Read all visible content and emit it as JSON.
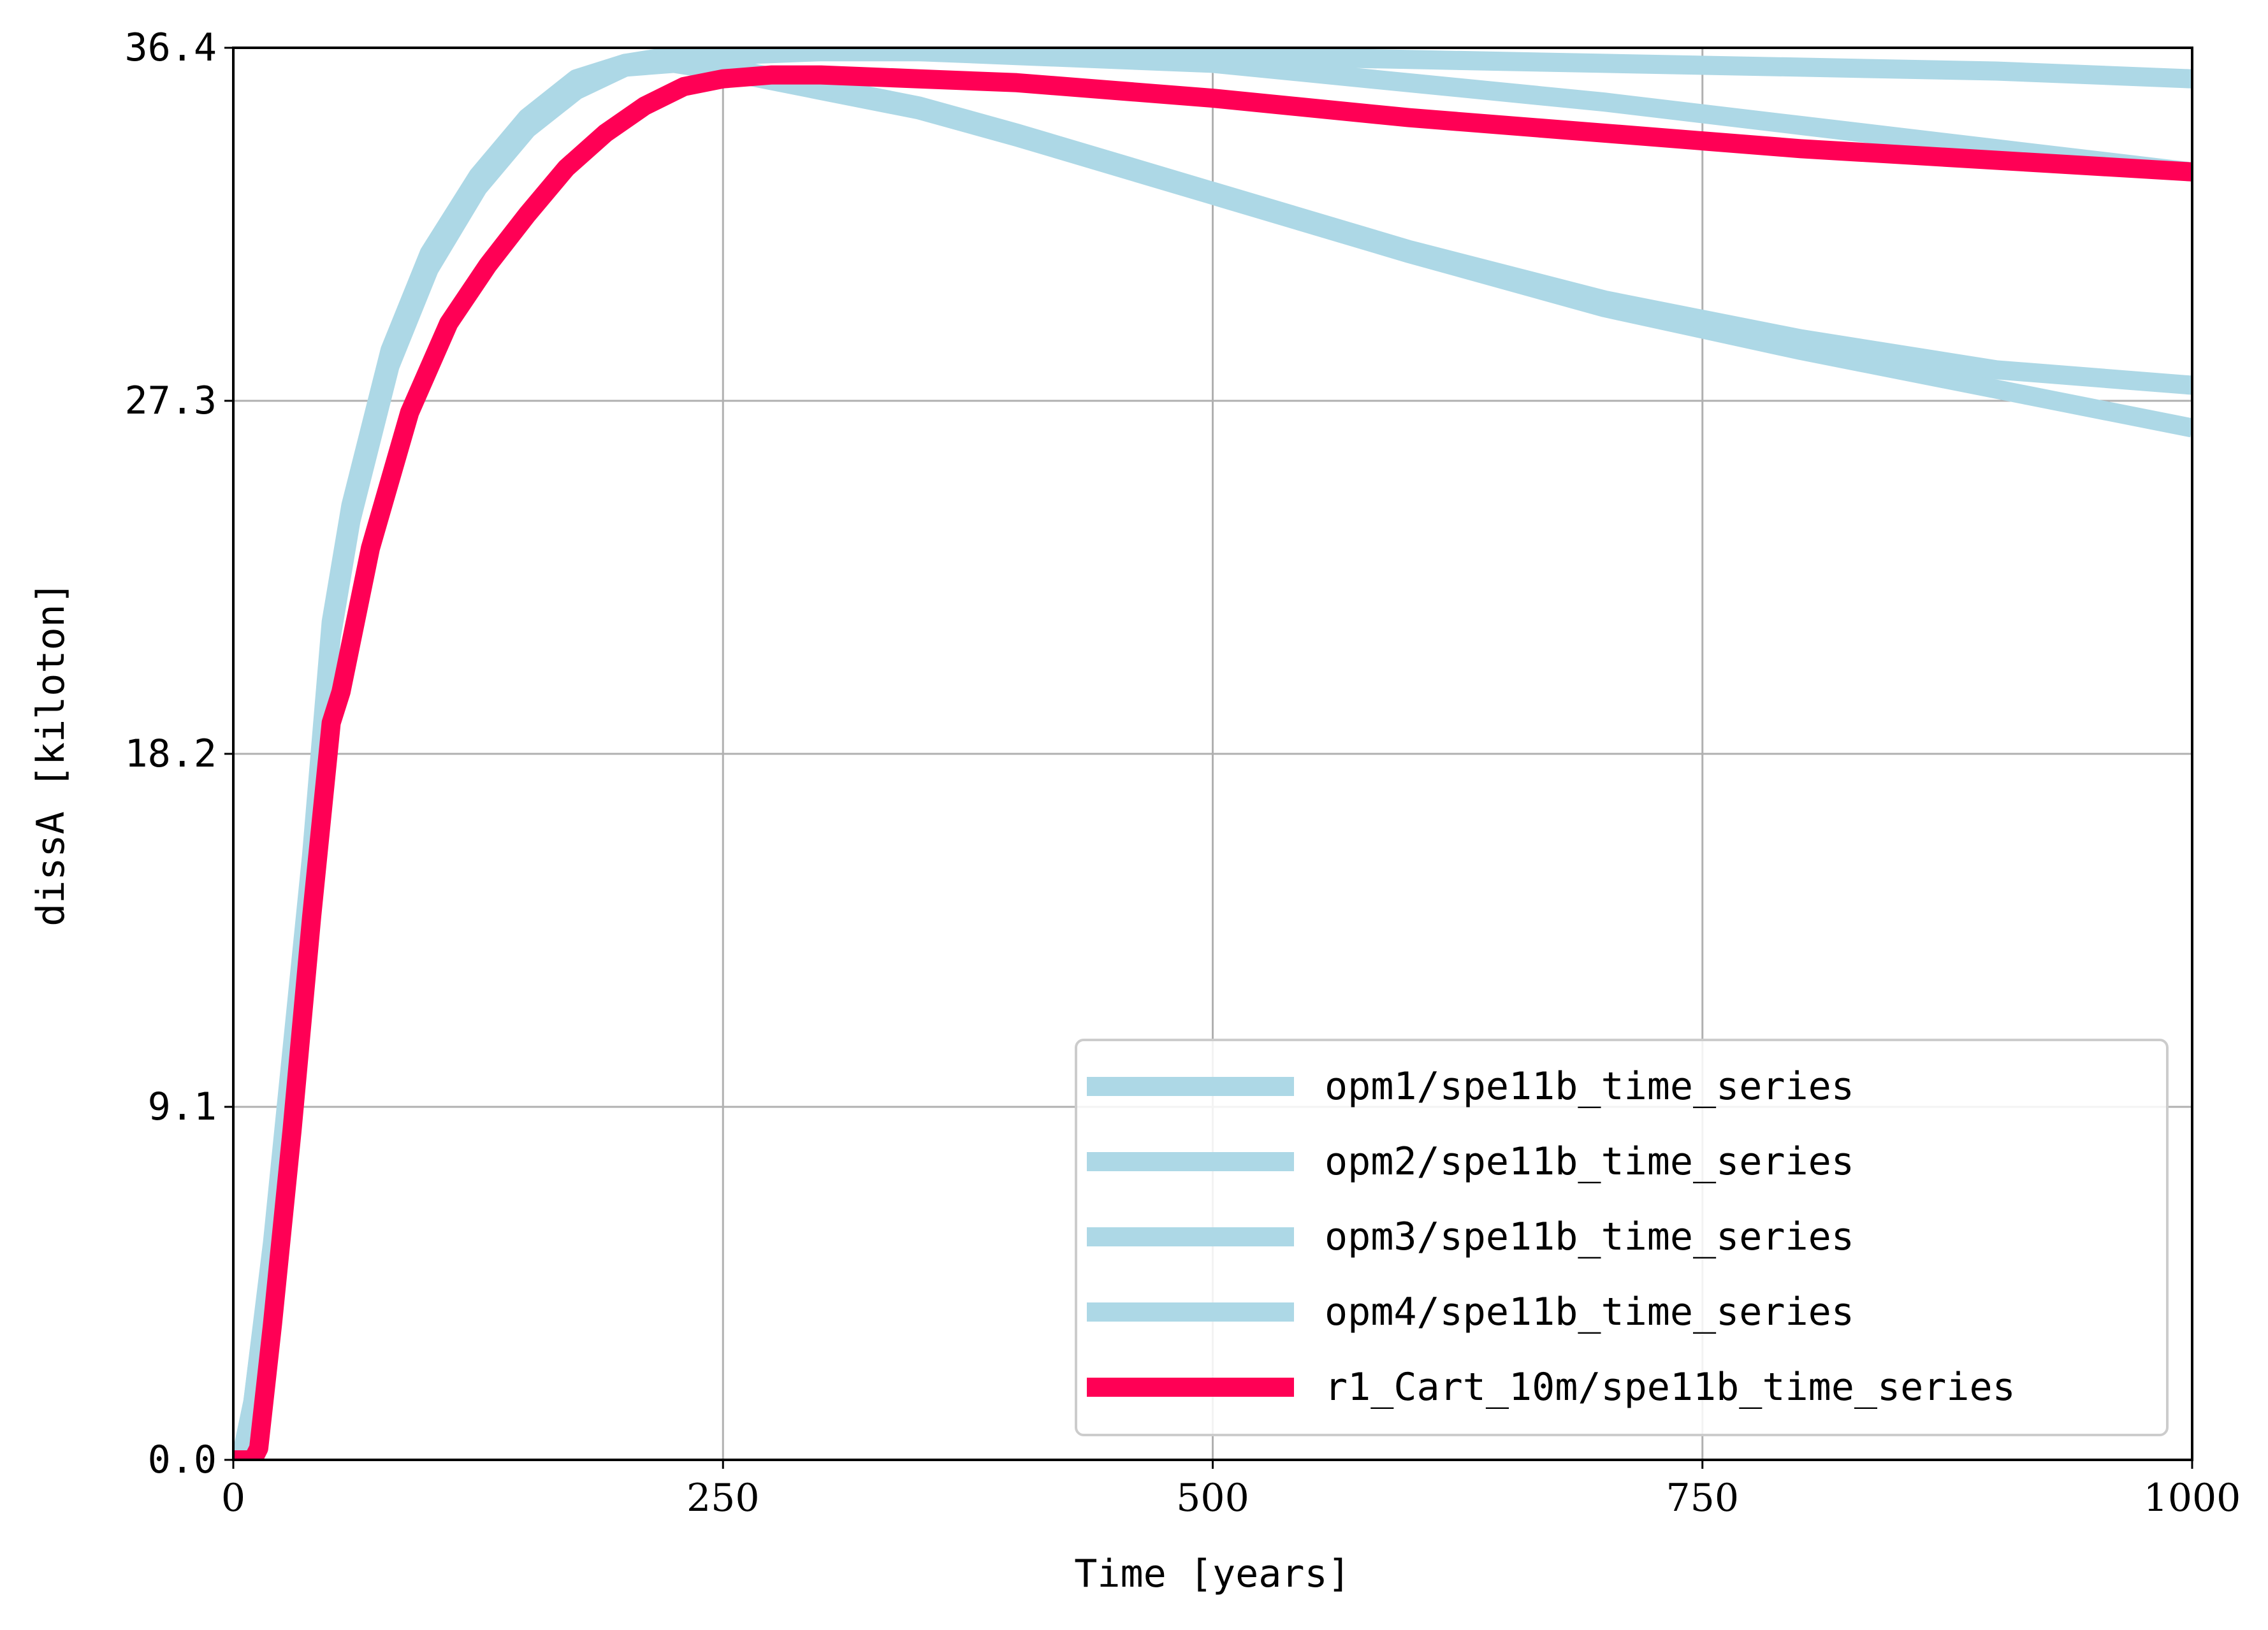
{
  "chart_data": {
    "type": "line",
    "title": "",
    "xlabel": "Time [years]",
    "ylabel": "dissA [kiloton]",
    "xlim": [
      0,
      1000
    ],
    "ylim": [
      0,
      36.4
    ],
    "xticks": [
      "0",
      "250",
      "500",
      "750",
      "1000"
    ],
    "xtick_values": [
      0,
      250,
      500,
      750,
      1000
    ],
    "yticks": [
      "0.0",
      "9.1",
      "18.2",
      "27.3",
      "36.4"
    ],
    "ytick_values": [
      0,
      9.1,
      18.2,
      27.3,
      36.4
    ],
    "grid": true,
    "legend_position": "lower-right",
    "series": [
      {
        "name": "opm1/spe11b_time_series",
        "color": "#add8e6",
        "x": [
          0,
          5,
          10,
          20,
          30,
          40,
          50,
          60,
          80,
          100,
          125,
          150,
          175,
          200,
          225,
          250,
          300,
          350,
          400,
          500,
          600,
          700,
          800,
          900,
          1000
        ],
        "y": [
          0,
          0.3,
          1.5,
          5.5,
          10.5,
          15.5,
          21.5,
          24.5,
          28.5,
          31.0,
          33.0,
          34.5,
          35.5,
          36.0,
          36.2,
          36.3,
          36.3,
          36.3,
          36.2,
          36.0,
          35.5,
          35.0,
          34.4,
          33.8,
          33.2
        ]
      },
      {
        "name": "opm2/spe11b_time_series",
        "color": "#add8e6",
        "x": [
          0,
          5,
          10,
          20,
          30,
          40,
          50,
          60,
          80,
          100,
          125,
          150,
          175,
          200,
          225,
          250,
          300,
          350,
          400,
          500,
          600,
          700,
          800,
          900,
          1000
        ],
        "y": [
          0,
          0.3,
          1.4,
          5.3,
          10.3,
          15.3,
          21.2,
          24.2,
          28.2,
          30.7,
          32.8,
          34.3,
          35.3,
          35.9,
          36.1,
          36.2,
          36.3,
          36.3,
          36.3,
          36.2,
          36.1,
          36.0,
          35.9,
          35.8,
          35.6
        ]
      },
      {
        "name": "opm3/spe11b_time_series",
        "color": "#add8e6",
        "x": [
          0,
          5,
          10,
          20,
          30,
          40,
          50,
          60,
          80,
          100,
          125,
          150,
          175,
          200,
          225,
          250,
          300,
          350,
          400,
          500,
          600,
          700,
          800,
          900,
          1000
        ],
        "y": [
          0,
          0.3,
          1.5,
          5.6,
          10.6,
          15.6,
          21.6,
          24.6,
          28.6,
          31.1,
          33.1,
          34.6,
          35.6,
          36.0,
          36.0,
          35.8,
          35.3,
          34.8,
          34.1,
          32.6,
          31.1,
          29.7,
          28.6,
          27.6,
          26.6
        ]
      },
      {
        "name": "opm4/spe11b_time_series",
        "color": "#add8e6",
        "x": [
          0,
          5,
          10,
          20,
          30,
          40,
          50,
          60,
          80,
          100,
          125,
          150,
          175,
          200,
          225,
          250,
          300,
          350,
          400,
          500,
          600,
          700,
          800,
          900,
          1000
        ],
        "y": [
          0,
          0.3,
          1.4,
          5.4,
          10.4,
          15.4,
          21.3,
          24.3,
          28.3,
          30.8,
          32.9,
          34.4,
          35.4,
          35.9,
          36.0,
          35.9,
          35.4,
          34.9,
          34.2,
          32.7,
          31.2,
          29.9,
          28.9,
          28.1,
          27.7
        ]
      },
      {
        "name": "r1_Cart_10m/spe11b_time_series",
        "color": "#ff0055",
        "x": [
          0,
          10,
          13,
          20,
          30,
          40,
          50,
          55,
          70,
          90,
          110,
          130,
          150,
          170,
          190,
          210,
          230,
          250,
          275,
          300,
          350,
          400,
          500,
          600,
          700,
          800,
          900,
          1000
        ],
        "y": [
          0,
          0,
          0.3,
          3.5,
          8.5,
          14.0,
          19.0,
          19.8,
          23.5,
          27.0,
          29.3,
          30.8,
          32.1,
          33.3,
          34.2,
          34.9,
          35.4,
          35.6,
          35.7,
          35.7,
          35.6,
          35.5,
          35.1,
          34.6,
          34.2,
          33.8,
          33.5,
          33.2
        ]
      }
    ]
  }
}
